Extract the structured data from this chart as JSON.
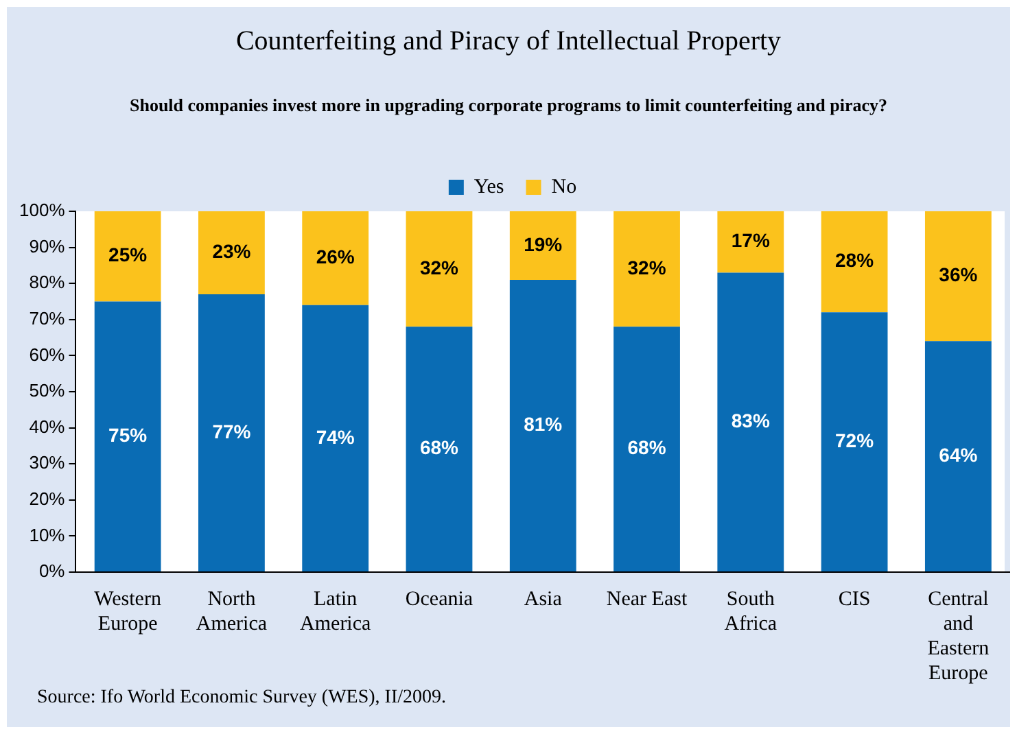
{
  "chart_data": {
    "type": "bar",
    "title": "Counterfeiting and Piracy of Intellectual Property",
    "subtitle": "Should companies invest more in upgrading corporate programs to limit counterfeiting and piracy?",
    "categories": [
      "Western Europe",
      "North America",
      "Latin America",
      "Oceania",
      "Asia",
      "Near East",
      "South Africa",
      "CIS",
      "Central and Eastern Europe"
    ],
    "stacked": true,
    "ylim": [
      0,
      100
    ],
    "yticks": [
      {
        "value": 0,
        "label": "0%"
      },
      {
        "value": 10,
        "label": "10%"
      },
      {
        "value": 20,
        "label": "20%"
      },
      {
        "value": 30,
        "label": "30%"
      },
      {
        "value": 40,
        "label": "40%"
      },
      {
        "value": 50,
        "label": "50%"
      },
      {
        "value": 60,
        "label": "60%"
      },
      {
        "value": 70,
        "label": "70%"
      },
      {
        "value": 80,
        "label": "80%"
      },
      {
        "value": 90,
        "label": "90%"
      },
      {
        "value": 100,
        "label": "100%"
      }
    ],
    "series": [
      {
        "name": "Yes",
        "color": "#0a6cb4",
        "values": [
          75,
          77,
          74,
          68,
          81,
          68,
          83,
          72,
          64
        ],
        "value_labels": [
          "75%",
          "77%",
          "74%",
          "68%",
          "81%",
          "68%",
          "83%",
          "72%",
          "64%"
        ]
      },
      {
        "name": "No",
        "color": "#fbc21c",
        "values": [
          25,
          23,
          26,
          32,
          19,
          32,
          17,
          28,
          36
        ],
        "value_labels": [
          "25%",
          "23%",
          "26%",
          "32%",
          "19%",
          "32%",
          "17%",
          "28%",
          "36%"
        ]
      }
    ],
    "grid": false,
    "legend": "top",
    "annotations": [
      "Source: Ifo World Economic Survey (WES), II/2009."
    ]
  }
}
